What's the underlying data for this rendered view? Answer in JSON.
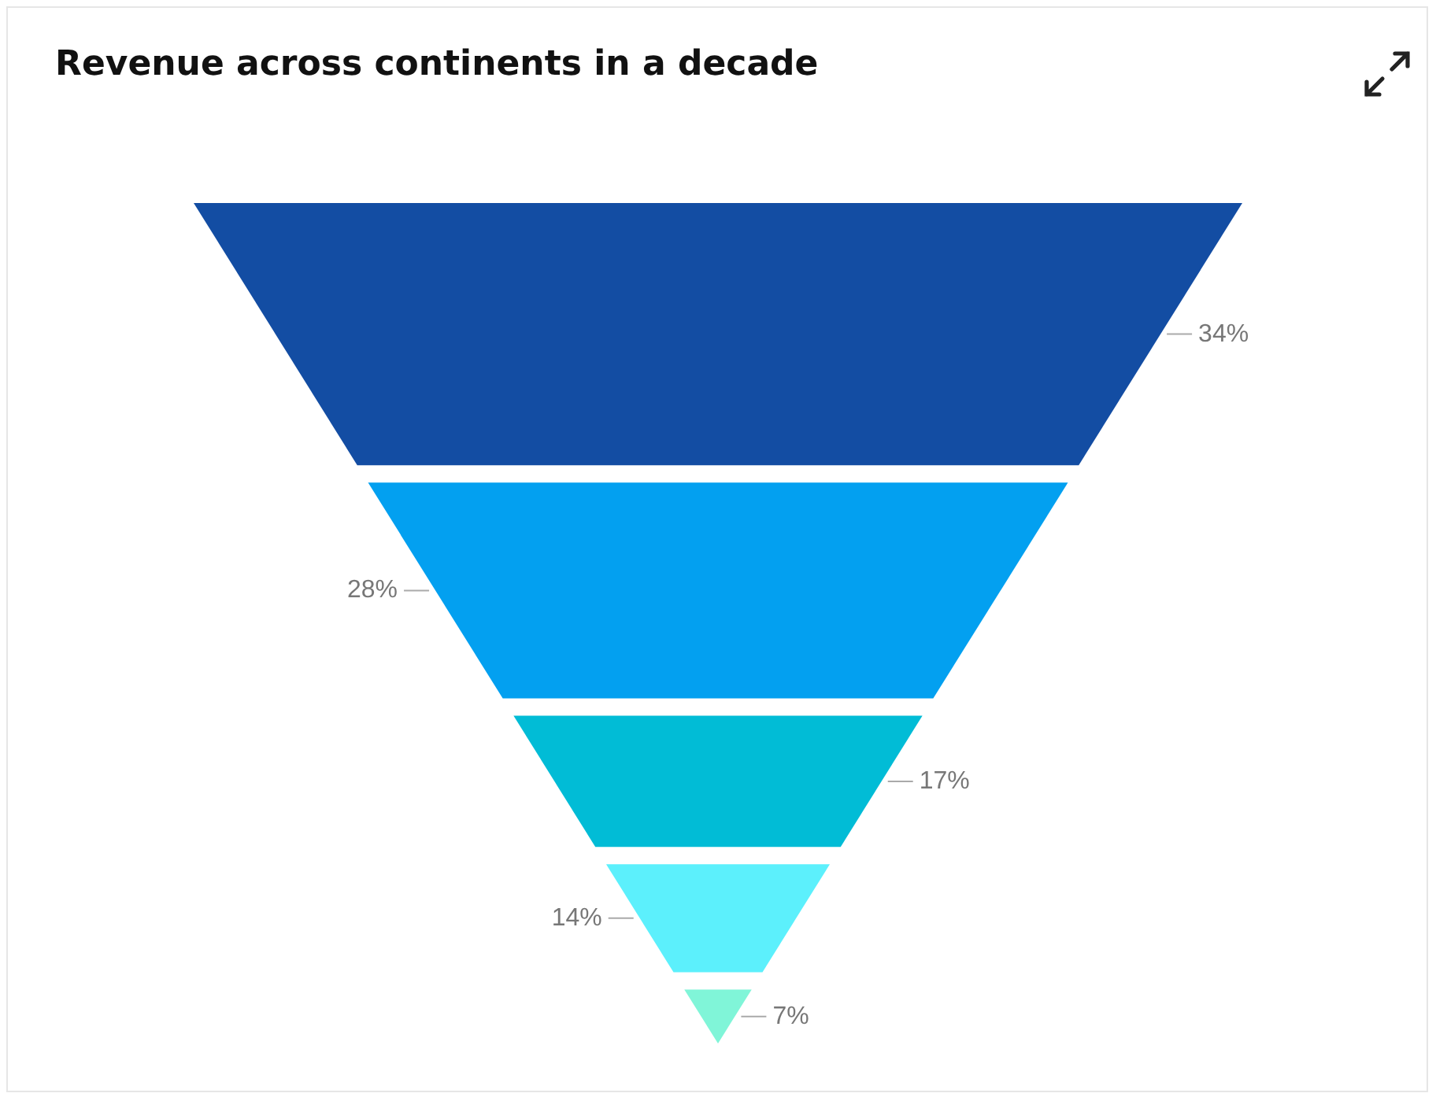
{
  "chart_data": {
    "type": "other",
    "title": "Revenue across continents in a decade",
    "categories": [
      null,
      null,
      null,
      null,
      null
    ],
    "values": [
      34,
      28,
      17,
      14,
      7
    ],
    "colors": [
      "#134da3",
      "#03a0f0",
      "#01bcd6",
      "#5cf0fc",
      "#80f5d8"
    ],
    "value_labels": [
      "34%",
      "28%",
      "17%",
      "14%",
      "7%"
    ]
  }
}
